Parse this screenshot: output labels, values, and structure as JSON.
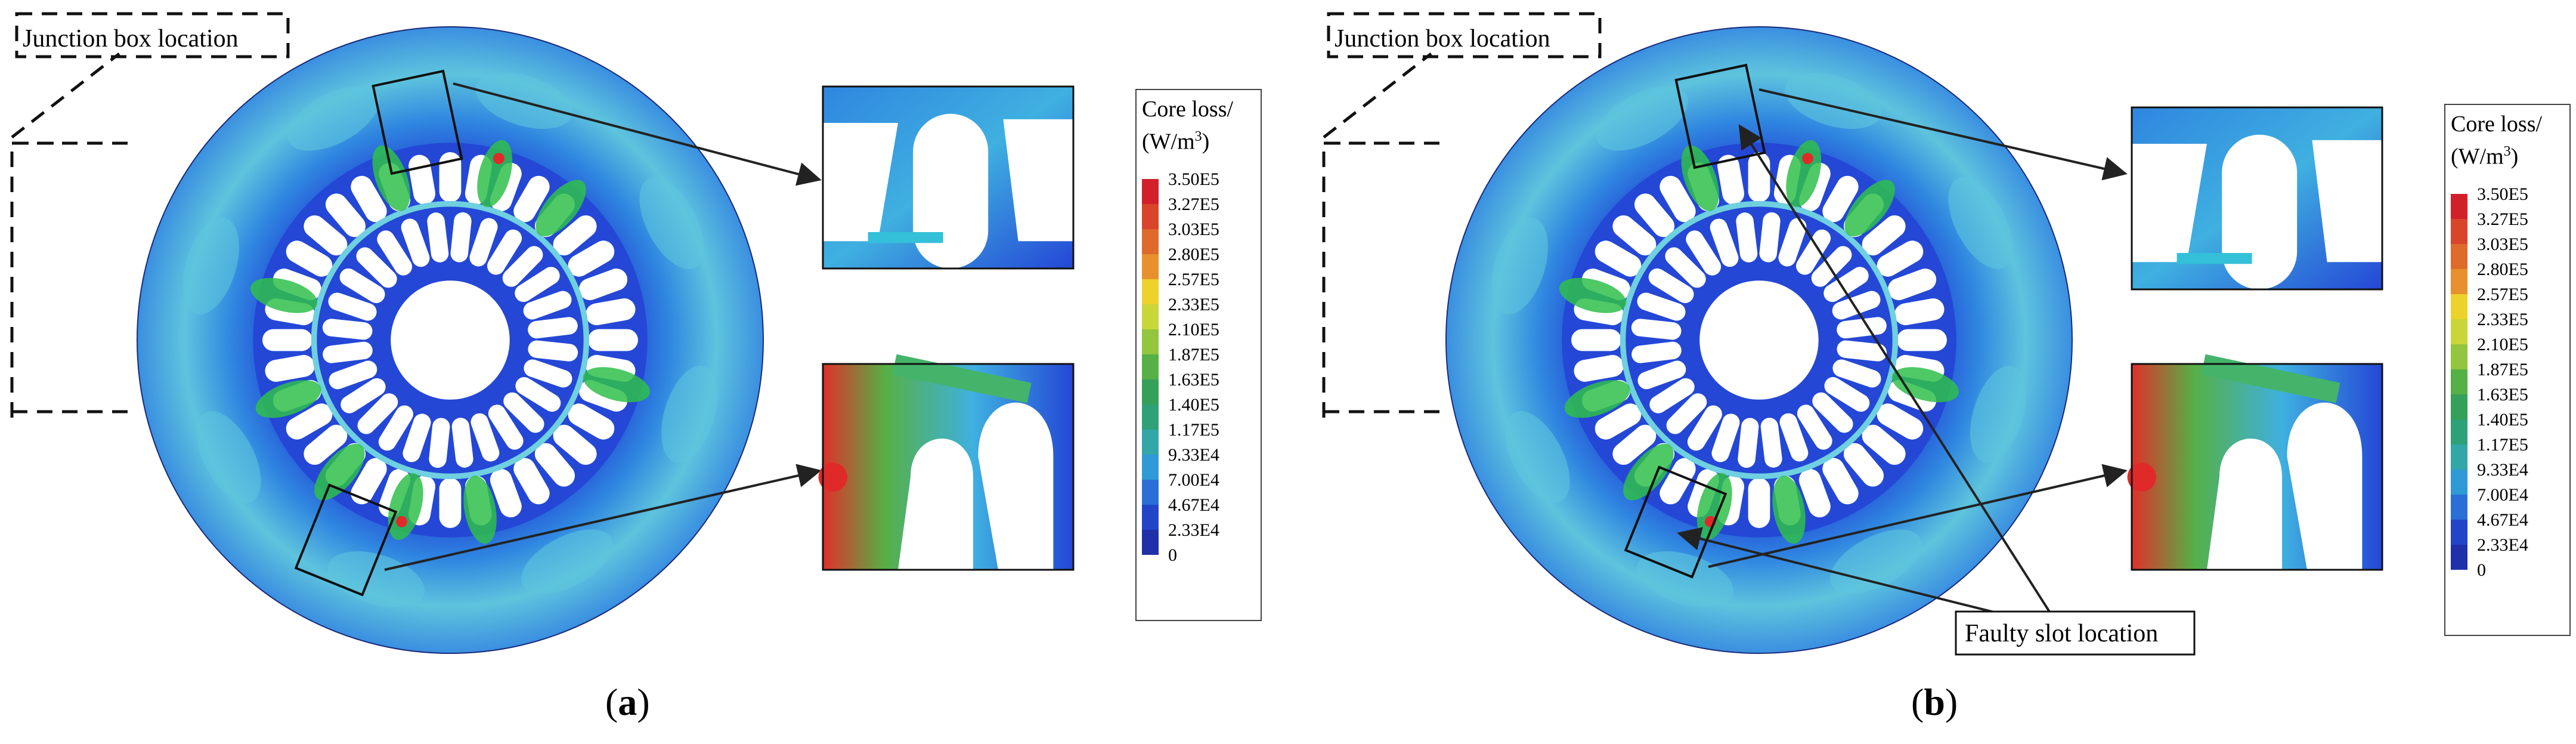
{
  "panels": [
    {
      "id": "a",
      "label_open": "(",
      "label_letter": "a",
      "label_close": ")",
      "junction_label": "Junction box location",
      "colorbar_title_1": "Core loss/",
      "colorbar_title_2": "(W/m",
      "colorbar_title_sup": "3",
      "colorbar_title_3": ")"
    },
    {
      "id": "b",
      "label_open": "(",
      "label_letter": "b",
      "label_close": ")",
      "junction_label": "Junction box location",
      "fault_label": "Faulty slot location",
      "colorbar_title_1": "Core loss/",
      "colorbar_title_2": "(W/m",
      "colorbar_title_sup": "3",
      "colorbar_title_3": ")"
    }
  ],
  "colorbar": {
    "labels": [
      "3.50E5",
      "3.27E5",
      "3.03E5",
      "2.80E5",
      "2.57E5",
      "2.33E5",
      "2.10E5",
      "1.87E5",
      "1.63E5",
      "1.40E5",
      "1.17E5",
      "9.33E4",
      "7.00E4",
      "4.67E4",
      "2.33E4",
      "0"
    ],
    "colors": [
      "#d2202a",
      "#d9452b",
      "#de6a2c",
      "#e7902d",
      "#ecd22a",
      "#c9d63a",
      "#93c53e",
      "#55b046",
      "#34a05a",
      "#2fa178",
      "#33a6a7",
      "#2f9ad5",
      "#2a6fd6",
      "#2245c8",
      "#1f30a8"
    ]
  },
  "palette": {
    "stator_base": "#2447d6",
    "stator_mid": "#2f86e0",
    "stator_light": "#5ec4dd",
    "hot": "#2fbf4a",
    "hot_peak": "#e02a2a"
  }
}
